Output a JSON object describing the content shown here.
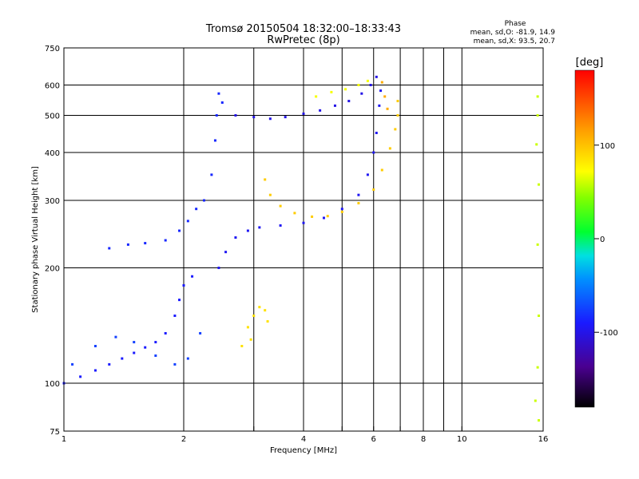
{
  "chart_data": {
    "type": "scatter",
    "title": "Tromsø 20150504 18:32:00–18:33:43",
    "subtitle": "RwPretec (8p)",
    "xlabel": "Frequency [MHz]",
    "ylabel": "Stationary phase Virtual Height [km]",
    "x_scale": "log",
    "y_scale": "log",
    "xlim": [
      1,
      16
    ],
    "ylim": [
      75,
      750
    ],
    "grid": true,
    "x_ticks": [
      {
        "v": 1,
        "label": "1"
      },
      {
        "v": 2,
        "label": "2"
      },
      {
        "v": 3,
        "label": ""
      },
      {
        "v": 4,
        "label": "4"
      },
      {
        "v": 5,
        "label": ""
      },
      {
        "v": 6,
        "label": "6"
      },
      {
        "v": 7,
        "label": ""
      },
      {
        "v": 8,
        "label": "8"
      },
      {
        "v": 9,
        "label": ""
      },
      {
        "v": 10,
        "label": "10"
      },
      {
        "v": 16,
        "label": "16"
      }
    ],
    "y_ticks": [
      {
        "v": 75,
        "label": "75"
      },
      {
        "v": 100,
        "label": "100"
      },
      {
        "v": 200,
        "label": "200"
      },
      {
        "v": 300,
        "label": "300"
      },
      {
        "v": 400,
        "label": "400"
      },
      {
        "v": 500,
        "label": "500"
      },
      {
        "v": 600,
        "label": "600"
      },
      {
        "v": 750,
        "label": "750"
      }
    ],
    "phase_info": {
      "heading": "Phase",
      "o_line": "mean, sd,O: -81.9, 14.9",
      "x_line": "mean, sd,X:  93.5, 20.7"
    },
    "colorbar": {
      "label": "[deg]",
      "range": [
        -180,
        180
      ],
      "ticks": [
        {
          "v": 100,
          "label": "100"
        },
        {
          "v": 0,
          "label": "0"
        },
        {
          "v": -100,
          "label": "-100"
        }
      ]
    },
    "series": [
      {
        "mode": "O",
        "phase": -90,
        "points": [
          [
            1.0,
            100
          ],
          [
            1.1,
            104
          ],
          [
            1.2,
            108
          ],
          [
            1.3,
            112
          ],
          [
            1.4,
            116
          ],
          [
            1.5,
            120
          ],
          [
            1.6,
            124
          ],
          [
            1.7,
            128
          ],
          [
            1.8,
            135
          ],
          [
            1.9,
            150
          ],
          [
            1.95,
            165
          ],
          [
            2.0,
            180
          ],
          [
            2.1,
            190
          ]
        ]
      },
      {
        "mode": "O",
        "phase": -75,
        "points": [
          [
            1.05,
            112
          ],
          [
            1.2,
            125
          ],
          [
            1.35,
            132
          ],
          [
            1.5,
            128
          ],
          [
            1.7,
            118
          ],
          [
            1.9,
            112
          ],
          [
            2.05,
            116
          ],
          [
            2.2,
            135
          ]
        ]
      },
      {
        "mode": "O",
        "phase": -85,
        "points": [
          [
            1.3,
            225
          ],
          [
            1.45,
            230
          ],
          [
            1.6,
            232
          ],
          [
            1.8,
            236
          ],
          [
            1.95,
            250
          ],
          [
            2.05,
            265
          ],
          [
            2.15,
            285
          ],
          [
            2.25,
            300
          ],
          [
            2.35,
            350
          ],
          [
            2.4,
            430
          ],
          [
            2.42,
            500
          ],
          [
            2.45,
            570
          ],
          [
            2.5,
            540
          ]
        ]
      },
      {
        "mode": "O",
        "phase": -95,
        "points": [
          [
            2.45,
            200
          ],
          [
            2.55,
            220
          ],
          [
            2.7,
            240
          ],
          [
            2.9,
            250
          ],
          [
            3.1,
            255
          ],
          [
            3.5,
            258
          ],
          [
            4.0,
            262
          ],
          [
            4.5,
            270
          ],
          [
            5.0,
            285
          ],
          [
            5.5,
            310
          ],
          [
            5.8,
            350
          ],
          [
            6.0,
            400
          ],
          [
            6.1,
            450
          ],
          [
            6.2,
            530
          ],
          [
            6.25,
            580
          ]
        ]
      },
      {
        "mode": "O",
        "phase": -100,
        "points": [
          [
            2.7,
            500
          ],
          [
            3.0,
            495
          ],
          [
            3.3,
            490
          ],
          [
            3.6,
            495
          ],
          [
            4.0,
            505
          ],
          [
            4.4,
            515
          ],
          [
            4.8,
            530
          ],
          [
            5.2,
            545
          ],
          [
            5.6,
            570
          ],
          [
            5.9,
            600
          ],
          [
            6.1,
            630
          ]
        ]
      },
      {
        "mode": "X",
        "phase": 95,
        "points": [
          [
            3.2,
            340
          ],
          [
            3.3,
            310
          ],
          [
            3.5,
            290
          ],
          [
            3.8,
            278
          ],
          [
            4.2,
            272
          ],
          [
            4.6,
            273
          ],
          [
            5.0,
            280
          ],
          [
            5.5,
            295
          ],
          [
            6.0,
            320
          ],
          [
            6.3,
            360
          ],
          [
            6.6,
            410
          ],
          [
            6.8,
            460
          ],
          [
            6.9,
            500
          ],
          [
            6.9,
            545
          ]
        ]
      },
      {
        "mode": "X",
        "phase": 85,
        "points": [
          [
            2.9,
            140
          ],
          [
            3.0,
            150
          ],
          [
            3.1,
            158
          ],
          [
            3.2,
            155
          ],
          [
            3.25,
            145
          ],
          [
            2.95,
            130
          ],
          [
            2.8,
            125
          ]
        ]
      },
      {
        "mode": "X",
        "phase": 70,
        "points": [
          [
            4.3,
            560
          ],
          [
            4.7,
            575
          ],
          [
            5.1,
            585
          ],
          [
            5.5,
            600
          ],
          [
            5.8,
            615
          ]
        ]
      },
      {
        "mode": "X",
        "phase": 110,
        "points": [
          [
            6.3,
            610
          ],
          [
            6.4,
            560
          ],
          [
            6.5,
            520
          ]
        ]
      },
      {
        "mode": "scattered",
        "phase": 60,
        "points": [
          [
            15.5,
            560
          ],
          [
            15.5,
            500
          ],
          [
            15.4,
            420
          ],
          [
            15.6,
            330
          ],
          [
            15.5,
            230
          ],
          [
            15.6,
            150
          ],
          [
            15.5,
            110
          ],
          [
            15.3,
            90
          ],
          [
            15.6,
            80
          ]
        ]
      }
    ]
  }
}
